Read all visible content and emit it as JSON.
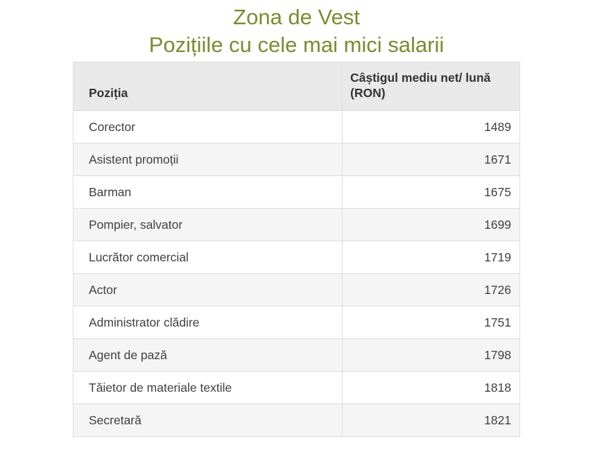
{
  "title": {
    "line1": "Zona de Vest",
    "line2": "Pozițiile cu cele mai mici salarii"
  },
  "table": {
    "headers": {
      "position": "Poziția",
      "salary": "Câștigul mediu net/ lună (RON)"
    },
    "rows": [
      {
        "position": "Corector",
        "salary": "1489"
      },
      {
        "position": "Asistent promoții",
        "salary": "1671"
      },
      {
        "position": "Barman",
        "salary": "1675"
      },
      {
        "position": "Pompier, salvator",
        "salary": "1699"
      },
      {
        "position": "Lucrător comercial",
        "salary": "1719"
      },
      {
        "position": "Actor",
        "salary": "1726"
      },
      {
        "position": "Administrator clădire",
        "salary": "1751"
      },
      {
        "position": "Agent de pază",
        "salary": "1798"
      },
      {
        "position": "Tăietor de materiale textile",
        "salary": "1818"
      },
      {
        "position": "Secretară",
        "salary": "1821"
      }
    ]
  },
  "colors": {
    "title_green": "#7a8c2d",
    "header_bg": "#e9e9e9",
    "row_alt_bg": "#f5f5f5",
    "border": "#dcdcdc",
    "text": "#404040"
  },
  "chart_data": {
    "type": "table",
    "title": "Zona de Vest",
    "subtitle": "Pozițiile cu cele mai mici salarii",
    "columns": [
      "Poziția",
      "Câștigul mediu net/ lună (RON)"
    ],
    "rows": [
      [
        "Corector",
        1489
      ],
      [
        "Asistent promoții",
        1671
      ],
      [
        "Barman",
        1675
      ],
      [
        "Pompier, salvator",
        1699
      ],
      [
        "Lucrător comercial",
        1719
      ],
      [
        "Actor",
        1726
      ],
      [
        "Administrator clădire",
        1751
      ],
      [
        "Agent de pază",
        1798
      ],
      [
        "Tăietor de materiale textile",
        1818
      ],
      [
        "Secretară",
        1821
      ]
    ]
  }
}
